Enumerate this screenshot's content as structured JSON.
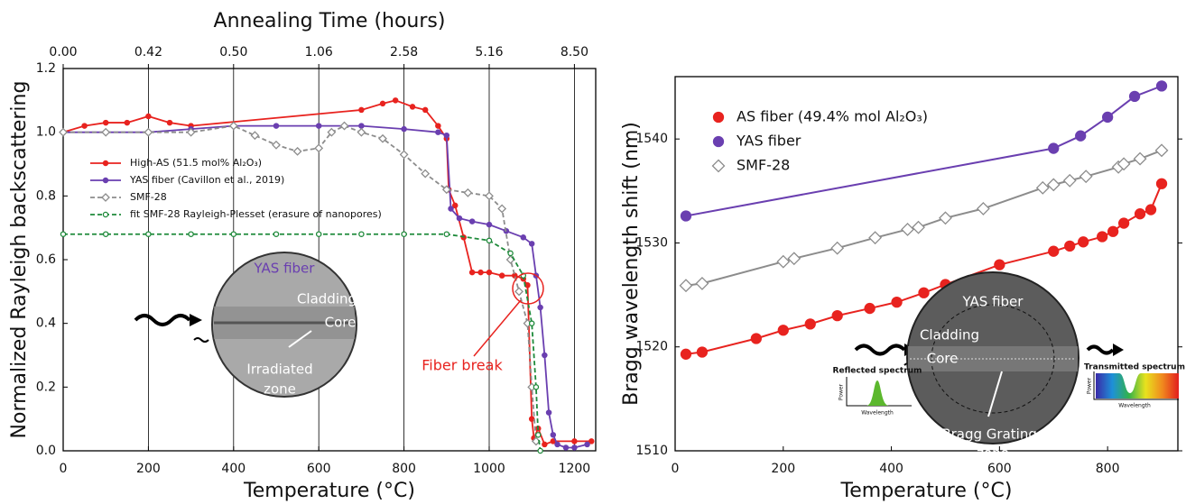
{
  "chart_data": [
    {
      "type": "line",
      "xlabel": "Temperature (°C)",
      "ylabel": "Normalized Rayleigh backscattering",
      "x2label": "Annealing Time (hours)",
      "xlim": [
        0,
        1250
      ],
      "ylim": [
        0,
        1.2
      ],
      "xticks": [
        0,
        200,
        400,
        600,
        800,
        1000,
        1200
      ],
      "x2ticks": [
        "0.00",
        "0.42",
        "0.50",
        "1.06",
        "2.58",
        "5.16",
        "8.50"
      ],
      "yticks": [
        {
          "value": 0,
          "label": "0.0"
        },
        0.2,
        0.4,
        0.6,
        0.8,
        {
          "value": 1,
          "label": "1.0"
        },
        1.2
      ],
      "grid": "x",
      "legend": "upper left",
      "annotation": "Fiber break",
      "inset": {
        "title": "YAS fiber",
        "labels": [
          "Cladding",
          "Core",
          "Irradiated",
          "zone"
        ]
      },
      "series": [
        {
          "name": "High-AS (51.5 mol% Al₂O₃)",
          "color": "#e8231f",
          "marker": "circle",
          "filled": true,
          "dashed": false,
          "x": [
            0,
            50,
            100,
            150,
            200,
            250,
            300,
            700,
            750,
            780,
            820,
            850,
            880,
            900,
            905,
            920,
            940,
            960,
            980,
            1000,
            1030,
            1060,
            1080,
            1090,
            1100,
            1105,
            1115,
            1130,
            1150,
            1200,
            1240
          ],
          "values": [
            1.0,
            1.02,
            1.03,
            1.03,
            1.05,
            1.03,
            1.02,
            1.07,
            1.09,
            1.1,
            1.08,
            1.07,
            1.02,
            0.98,
            0.82,
            0.77,
            0.67,
            0.56,
            0.56,
            0.56,
            0.55,
            0.55,
            0.54,
            0.52,
            0.1,
            0.04,
            0.07,
            0.02,
            0.03,
            0.03,
            0.03
          ]
        },
        {
          "name": "YAS fiber (Cavillon et al., 2019)",
          "color": "#6a3fb0",
          "marker": "circle",
          "filled": true,
          "dashed": false,
          "x": [
            0,
            100,
            200,
            300,
            400,
            500,
            600,
            700,
            800,
            880,
            900,
            910,
            930,
            960,
            1000,
            1040,
            1080,
            1100,
            1110,
            1120,
            1130,
            1140,
            1150,
            1160,
            1180,
            1200,
            1230
          ],
          "values": [
            1.0,
            1.0,
            1.0,
            1.01,
            1.02,
            1.02,
            1.02,
            1.02,
            1.01,
            1.0,
            0.99,
            0.76,
            0.73,
            0.72,
            0.71,
            0.69,
            0.67,
            0.65,
            0.55,
            0.45,
            0.3,
            0.12,
            0.05,
            0.02,
            0.01,
            0.01,
            0.02
          ]
        },
        {
          "name": "SMF-28",
          "color": "#8c8c8c",
          "marker": "diamond",
          "filled": false,
          "dashed": true,
          "x": [
            0,
            100,
            200,
            300,
            400,
            450,
            500,
            550,
            600,
            630,
            660,
            700,
            750,
            800,
            850,
            900,
            950,
            1000,
            1030,
            1050,
            1070,
            1090,
            1100,
            1110
          ],
          "values": [
            1.0,
            1.0,
            1.0,
            1.0,
            1.02,
            0.99,
            0.96,
            0.94,
            0.95,
            1.0,
            1.02,
            1.0,
            0.98,
            0.93,
            0.87,
            0.82,
            0.81,
            0.8,
            0.76,
            0.6,
            0.5,
            0.4,
            0.2,
            0.03
          ]
        },
        {
          "name": "fit SMF-28 Rayleigh-Plesset (erasure of nanopores)",
          "color": "#1e8a3a",
          "marker": "circle",
          "filled": false,
          "dashed": true,
          "x": [
            0,
            100,
            200,
            300,
            400,
            500,
            600,
            700,
            800,
            900,
            1000,
            1050,
            1080,
            1100,
            1110,
            1115,
            1120
          ],
          "values": [
            0.68,
            0.68,
            0.68,
            0.68,
            0.68,
            0.68,
            0.68,
            0.68,
            0.68,
            0.68,
            0.66,
            0.62,
            0.55,
            0.4,
            0.2,
            0.05,
            0
          ]
        }
      ]
    },
    {
      "type": "scatter",
      "xlabel": "Temperature (°C)",
      "ylabel": "Bragg wavelength shift (nm)",
      "xlim": [
        0,
        930
      ],
      "ylim": [
        1510,
        1546
      ],
      "xticks": [
        0,
        200,
        400,
        600,
        800
      ],
      "yticks": [
        1510,
        1520,
        1530,
        1540
      ],
      "legend": "upper left",
      "inset": {
        "title": "YAS fiber",
        "labels": [
          "Cladding",
          "Core",
          "Bragg Gratings",
          "zone"
        ],
        "reflected": "Reflected spectrum",
        "transmitted": "Transmitted spectrum",
        "power": "Power",
        "wavelength": "Wavelength"
      },
      "series": [
        {
          "name": "AS fiber (49.4% mol Al₂O₃)",
          "color": "#e8231f",
          "marker": "circle",
          "filled": true,
          "dashed": false,
          "x": [
            20,
            50,
            150,
            200,
            250,
            300,
            360,
            410,
            460,
            500,
            600,
            700,
            730,
            755,
            790,
            810,
            830,
            860,
            880,
            900
          ],
          "values": [
            1519.3,
            1519.5,
            1520.8,
            1521.6,
            1522.2,
            1523,
            1523.7,
            1524.3,
            1525.2,
            1526,
            1527.9,
            1529.2,
            1529.7,
            1530.1,
            1530.6,
            1531.1,
            1531.9,
            1532.8,
            1533.2,
            1535.7
          ]
        },
        {
          "name": "YAS fiber",
          "color": "#6a3fb0",
          "marker": "circle",
          "filled": true,
          "dashed": false,
          "x": [
            20,
            700,
            750,
            800,
            850,
            900
          ],
          "values": [
            1532.6,
            1539.1,
            1540.3,
            1542.1,
            1544.1,
            1545.1
          ]
        },
        {
          "name": "SMF-28",
          "color": "#8c8c8c",
          "marker": "diamond",
          "filled": false,
          "dashed": false,
          "x": [
            20,
            50,
            200,
            220,
            300,
            370,
            430,
            450,
            500,
            570,
            680,
            700,
            730,
            760,
            820,
            830,
            860,
            900
          ],
          "values": [
            1525.9,
            1526.1,
            1528.2,
            1528.5,
            1529.5,
            1530.5,
            1531.3,
            1531.5,
            1532.4,
            1533.3,
            1535.3,
            1535.6,
            1536,
            1536.4,
            1537.3,
            1537.6,
            1538.1,
            1538.9
          ]
        }
      ]
    }
  ]
}
